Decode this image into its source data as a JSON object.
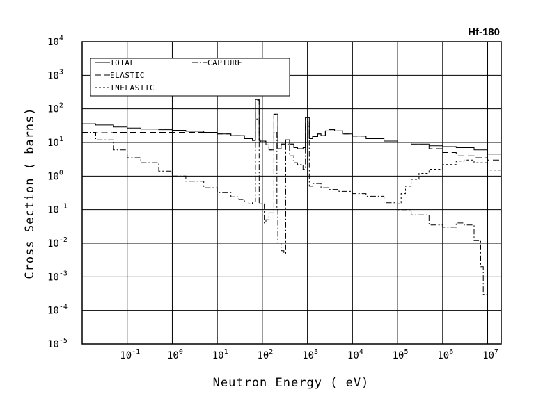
{
  "chart_data": {
    "type": "line",
    "title": "Hf-180",
    "xlabel": "Neutron Energy ( eV)",
    "ylabel": "Cross Section ( barns)",
    "x_scale": "log",
    "y_scale": "log",
    "xlim": [
      0.01,
      20000000
    ],
    "ylim": [
      1e-05,
      10000
    ],
    "grid": true,
    "legend_position": "top-left",
    "x_ticks": [
      {
        "base": "10",
        "exp": "-1",
        "value": 0.1
      },
      {
        "base": "10",
        "exp": "0",
        "value": 1
      },
      {
        "base": "10",
        "exp": "1",
        "value": 10
      },
      {
        "base": "10",
        "exp": "2",
        "value": 100
      },
      {
        "base": "10",
        "exp": "3",
        "value": 1000
      },
      {
        "base": "10",
        "exp": "4",
        "value": 10000
      },
      {
        "base": "10",
        "exp": "5",
        "value": 100000
      },
      {
        "base": "10",
        "exp": "6",
        "value": 1000000
      },
      {
        "base": "10",
        "exp": "7",
        "value": 10000000
      }
    ],
    "y_ticks": [
      {
        "base": "10",
        "exp": "-5",
        "value": 1e-05
      },
      {
        "base": "10",
        "exp": "-4",
        "value": 0.0001
      },
      {
        "base": "10",
        "exp": "-3",
        "value": 0.001
      },
      {
        "base": "10",
        "exp": "-2",
        "value": 0.01
      },
      {
        "base": "10",
        "exp": "-1",
        "value": 0.1
      },
      {
        "base": "10",
        "exp": "0",
        "value": 1
      },
      {
        "base": "10",
        "exp": "1",
        "value": 10
      },
      {
        "base": "10",
        "exp": "2",
        "value": 100
      },
      {
        "base": "10",
        "exp": "3",
        "value": 1000
      },
      {
        "base": "10",
        "exp": "4",
        "value": 10000
      }
    ],
    "series": [
      {
        "name": "TOTAL",
        "dash": "solid",
        "x": [
          0.01,
          0.02,
          0.05,
          0.1,
          0.2,
          0.5,
          1,
          2,
          5,
          10,
          20,
          40,
          60,
          70,
          75,
          85,
          90,
          120,
          140,
          180,
          200,
          220,
          260,
          330,
          400,
          500,
          600,
          800,
          900,
          1000,
          1100,
          1300,
          1700,
          2000,
          2500,
          3000,
          4000,
          6000,
          10000,
          20000,
          50000,
          100000,
          200000,
          500000,
          1000000,
          2000000,
          5000000,
          10000000,
          20000000
        ],
        "y": [
          36,
          33,
          29,
          27,
          25,
          24,
          23,
          21.5,
          20,
          18,
          16,
          13,
          11.5,
          190,
          190,
          12,
          11,
          8.5,
          6,
          70,
          70,
          6.5,
          9,
          12,
          9,
          7,
          6.5,
          7,
          55,
          55,
          13,
          15,
          18,
          16,
          22,
          24,
          22,
          18,
          15.5,
          13,
          11,
          10,
          9,
          8,
          7.5,
          7,
          6,
          4.5,
          5
        ]
      },
      {
        "name": "ELASTIC",
        "dash": "long-dash",
        "x": [
          0.01,
          0.02,
          0.05,
          0.1,
          0.5,
          1,
          5,
          10,
          20,
          40,
          60,
          70,
          75,
          85,
          90,
          120,
          140,
          180,
          200,
          220,
          260,
          330,
          400,
          500,
          600,
          800,
          900,
          1000,
          1100,
          1300,
          1700,
          2000,
          2500,
          3000,
          4000,
          6000,
          10000,
          20000,
          50000,
          100000,
          200000,
          500000,
          1000000,
          2000000,
          5000000,
          10000000,
          20000000
        ],
        "y": [
          19,
          19.5,
          20,
          20,
          20,
          20,
          19,
          18,
          16,
          13,
          11.5,
          180,
          180,
          11,
          10.5,
          8.5,
          6,
          68,
          68,
          6.5,
          9,
          12,
          9,
          7,
          6.5,
          7,
          55,
          55,
          13,
          15,
          18,
          16,
          22,
          24,
          22,
          18,
          15.5,
          13,
          11,
          10,
          8.5,
          6.5,
          5,
          4,
          3.5,
          3,
          2.5
        ]
      },
      {
        "name": "CAPTURE",
        "dash": "dash-dot",
        "x": [
          0.01,
          0.02,
          0.05,
          0.1,
          0.2,
          0.5,
          1,
          2,
          5,
          10,
          20,
          30,
          40,
          50,
          60,
          65,
          70,
          75,
          85,
          90,
          110,
          120,
          140,
          180,
          200,
          210,
          220,
          260,
          300,
          330,
          400,
          500,
          600,
          800,
          900,
          1000,
          1100,
          1300,
          2000,
          3000,
          5000,
          10000,
          20000,
          50000,
          100000,
          200000,
          500000,
          1000000,
          2000000,
          3000000,
          5000000,
          7000000,
          8000000,
          10000000
        ],
        "y": [
          20,
          12,
          6,
          3.5,
          2.5,
          1.4,
          1.0,
          0.7,
          0.45,
          0.32,
          0.24,
          0.2,
          0.17,
          0.15,
          0.16,
          0.17,
          50,
          50,
          0.15,
          0.15,
          0.04,
          0.05,
          0.08,
          20,
          20,
          0.1,
          0.01,
          0.006,
          0.005,
          9,
          4,
          2.5,
          2.2,
          1.6,
          30,
          30,
          0.5,
          0.6,
          0.45,
          0.4,
          0.35,
          0.3,
          0.25,
          0.16,
          0.1,
          0.07,
          0.035,
          0.03,
          0.04,
          0.035,
          0.012,
          0.002,
          0.0003,
          2e-05
        ]
      },
      {
        "name": "INELASTIC",
        "dash": "short-dash",
        "x": [
          100000,
          120000,
          150000,
          200000,
          300000,
          500000,
          1000000,
          2000000,
          3000000,
          5000000,
          10000000,
          20000000
        ],
        "y": [
          0.15,
          0.3,
          0.5,
          0.8,
          1.2,
          1.6,
          2.2,
          2.8,
          3,
          2.5,
          1.5,
          1.0
        ]
      }
    ]
  }
}
